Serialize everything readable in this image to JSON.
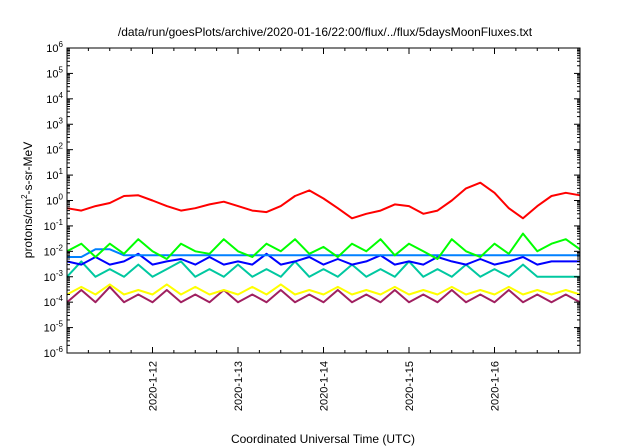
{
  "chart_data": {
    "type": "line",
    "title": "/data/run/goesPlots/archive/2020-01-16/22:00/flux/../flux/5daysMoonFluxes.txt",
    "xlabel": "Coordinated Universal Time (UTC)",
    "ylabel": {
      "prefix": "protons/cm",
      "sup": "2",
      "suffix": "-s-sr-MeV"
    },
    "y_scale": "log",
    "ylim": [
      1e-06,
      1000000.0
    ],
    "y_ticks": [
      {
        "base": "10",
        "exp": "-6",
        "value": 1e-06
      },
      {
        "base": "10",
        "exp": "-5",
        "value": 1e-05
      },
      {
        "base": "10",
        "exp": "-4",
        "value": 0.0001
      },
      {
        "base": "10",
        "exp": "-3",
        "value": 0.001
      },
      {
        "base": "10",
        "exp": "-2",
        "value": 0.01
      },
      {
        "base": "10",
        "exp": "-1",
        "value": 0.1
      },
      {
        "base": "10",
        "exp": "0",
        "value": 1
      },
      {
        "base": "10",
        "exp": "1",
        "value": 10
      },
      {
        "base": "10",
        "exp": "2",
        "value": 100
      },
      {
        "base": "10",
        "exp": "3",
        "value": 1000
      },
      {
        "base": "10",
        "exp": "4",
        "value": 10000
      },
      {
        "base": "10",
        "exp": "5",
        "value": 100000
      },
      {
        "base": "10",
        "exp": "6",
        "value": 1000000
      }
    ],
    "xlim": [
      "2020-01-11 00:00",
      "2020-01-17 00:00"
    ],
    "x_ticks": [
      {
        "label": "2020-1-12",
        "value": "2020-01-12"
      },
      {
        "label": "2020-1-13",
        "value": "2020-01-13"
      },
      {
        "label": "2020-1-14",
        "value": "2020-01-14"
      },
      {
        "label": "2020-1-15",
        "value": "2020-01-15"
      },
      {
        "label": "2020-1-16",
        "value": "2020-01-16"
      }
    ],
    "grid": false,
    "legend": "none",
    "x": [
      "2020-01-11 00:00",
      "2020-01-11 04:00",
      "2020-01-11 08:00",
      "2020-01-11 12:00",
      "2020-01-11 16:00",
      "2020-01-11 20:00",
      "2020-01-12 00:00",
      "2020-01-12 04:00",
      "2020-01-12 08:00",
      "2020-01-12 12:00",
      "2020-01-12 16:00",
      "2020-01-12 20:00",
      "2020-01-13 00:00",
      "2020-01-13 04:00",
      "2020-01-13 08:00",
      "2020-01-13 12:00",
      "2020-01-13 16:00",
      "2020-01-13 20:00",
      "2020-01-14 00:00",
      "2020-01-14 04:00",
      "2020-01-14 08:00",
      "2020-01-14 12:00",
      "2020-01-14 16:00",
      "2020-01-14 20:00",
      "2020-01-15 00:00",
      "2020-01-15 04:00",
      "2020-01-15 08:00",
      "2020-01-15 12:00",
      "2020-01-15 16:00",
      "2020-01-15 20:00",
      "2020-01-16 00:00",
      "2020-01-16 04:00",
      "2020-01-16 08:00",
      "2020-01-16 12:00",
      "2020-01-16 16:00",
      "2020-01-16 20:00",
      "2020-01-17 00:00"
    ],
    "series": [
      {
        "color": "#ff0000",
        "values": [
          0.5,
          0.4,
          0.6,
          0.8,
          1.5,
          1.6,
          1.0,
          0.6,
          0.4,
          0.5,
          0.7,
          0.9,
          0.6,
          0.4,
          0.35,
          0.6,
          1.5,
          2.5,
          1.2,
          0.5,
          0.2,
          0.3,
          0.4,
          0.7,
          0.6,
          0.3,
          0.4,
          1.0,
          3.0,
          5.0,
          2.0,
          0.5,
          0.2,
          0.6,
          1.5,
          2.0,
          1.6
        ]
      },
      {
        "color": "#00ff00",
        "values": [
          0.01,
          0.02,
          0.006,
          0.02,
          0.008,
          0.03,
          0.01,
          0.005,
          0.02,
          0.01,
          0.008,
          0.03,
          0.01,
          0.006,
          0.02,
          0.01,
          0.03,
          0.008,
          0.015,
          0.006,
          0.02,
          0.01,
          0.03,
          0.007,
          0.02,
          0.01,
          0.005,
          0.03,
          0.01,
          0.006,
          0.02,
          0.008,
          0.05,
          0.01,
          0.02,
          0.03,
          0.012
        ]
      },
      {
        "color": "#0080ff",
        "values": [
          0.006,
          0.006,
          0.012,
          0.012,
          0.007,
          0.007,
          0.007,
          0.007,
          0.007,
          0.007,
          0.007,
          0.007,
          0.007,
          0.007,
          0.007,
          0.007,
          0.007,
          0.007,
          0.007,
          0.007,
          0.007,
          0.007,
          0.007,
          0.007,
          0.007,
          0.007,
          0.007,
          0.007,
          0.007,
          0.007,
          0.007,
          0.007,
          0.007,
          0.007,
          0.007,
          0.007,
          0.007
        ]
      },
      {
        "color": "#0000ff",
        "values": [
          0.004,
          0.003,
          0.006,
          0.003,
          0.004,
          0.008,
          0.003,
          0.004,
          0.005,
          0.003,
          0.006,
          0.003,
          0.004,
          0.003,
          0.008,
          0.003,
          0.004,
          0.006,
          0.003,
          0.005,
          0.003,
          0.004,
          0.007,
          0.003,
          0.004,
          0.003,
          0.006,
          0.004,
          0.003,
          0.005,
          0.003,
          0.004,
          0.006,
          0.003,
          0.004,
          0.004,
          0.004
        ]
      },
      {
        "color": "#00c8a0",
        "values": [
          0.001,
          0.004,
          0.001,
          0.002,
          0.001,
          0.003,
          0.001,
          0.002,
          0.004,
          0.001,
          0.002,
          0.001,
          0.003,
          0.001,
          0.002,
          0.001,
          0.004,
          0.001,
          0.002,
          0.001,
          0.003,
          0.001,
          0.002,
          0.001,
          0.004,
          0.001,
          0.002,
          0.001,
          0.003,
          0.001,
          0.002,
          0.001,
          0.003,
          0.001,
          0.001,
          0.001,
          0.001
        ]
      },
      {
        "color": "#ffff00",
        "values": [
          0.0002,
          0.0004,
          0.0002,
          0.0005,
          0.0002,
          0.0003,
          0.0002,
          0.0005,
          0.0002,
          0.0004,
          0.0002,
          0.0003,
          0.0002,
          0.0004,
          0.0002,
          0.0005,
          0.0002,
          0.0003,
          0.0002,
          0.0004,
          0.0002,
          0.0003,
          0.0002,
          0.0004,
          0.0002,
          0.0003,
          0.0002,
          0.0004,
          0.0002,
          0.0003,
          0.0002,
          0.0004,
          0.0002,
          0.0003,
          0.0002,
          0.0003,
          0.0002
        ]
      },
      {
        "color": "#a02060",
        "values": [
          0.0001,
          0.0003,
          0.0001,
          0.0004,
          0.0001,
          0.0002,
          0.0001,
          0.0003,
          0.0001,
          0.0002,
          0.0001,
          0.0003,
          0.0001,
          0.0002,
          0.0001,
          0.0003,
          0.0001,
          0.0002,
          0.0001,
          0.0003,
          0.0001,
          0.0002,
          0.0001,
          0.0003,
          0.0001,
          0.0002,
          0.0001,
          0.0003,
          0.0001,
          0.0002,
          0.0001,
          0.0003,
          0.0001,
          0.0002,
          0.0001,
          0.0002,
          0.0001
        ]
      }
    ]
  }
}
